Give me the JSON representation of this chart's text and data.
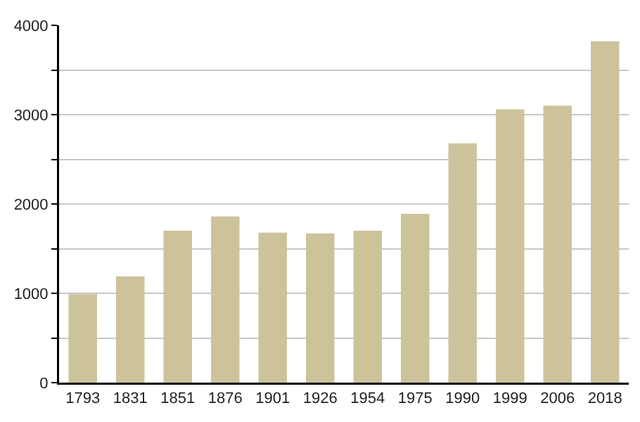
{
  "chart_data": {
    "type": "bar",
    "categories": [
      "1793",
      "1831",
      "1851",
      "1876",
      "1901",
      "1926",
      "1954",
      "1975",
      "1990",
      "1999",
      "2006",
      "2018"
    ],
    "values": [
      990,
      1190,
      1700,
      1860,
      1680,
      1670,
      1700,
      1890,
      2680,
      3060,
      3100,
      3820
    ],
    "color": "#cdc39b",
    "ylim": [
      0,
      4000
    ],
    "yticks": [
      0,
      {
        "value": 500,
        "label": null
      },
      1000,
      {
        "value": 1500,
        "label": null
      },
      2000,
      {
        "value": 2500,
        "label": null
      },
      3000,
      {
        "value": 3500,
        "label": null
      },
      4000
    ],
    "grid": "y"
  }
}
